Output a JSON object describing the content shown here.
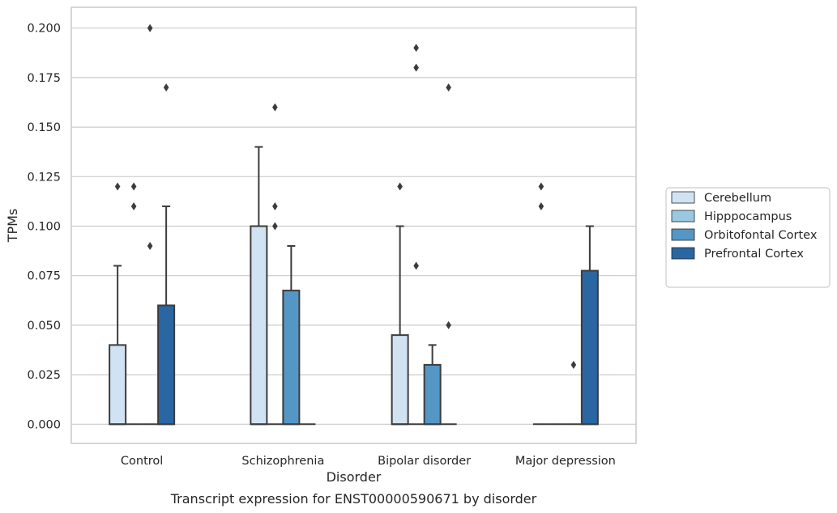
{
  "chart_data": {
    "type": "boxplot",
    "title": "Transcript expression for ENST00000590671 by disorder",
    "xlabel": "Disorder",
    "ylabel": "TPMs",
    "ylim": [
      -0.02,
      0.21
    ],
    "yticks": [
      0.0,
      0.025,
      0.05,
      0.075,
      0.1,
      0.125,
      0.15,
      0.175,
      0.2
    ],
    "ytick_labels": [
      "0.000",
      "0.025",
      "0.050",
      "0.075",
      "0.100",
      "0.125",
      "0.150",
      "0.175",
      "0.200"
    ],
    "grid": "horizontal",
    "legend_position": "right",
    "categories": [
      "Control",
      "Schizophrenia",
      "Bipolar disorder",
      "Major depression"
    ],
    "series": [
      {
        "name": "Cerebellum",
        "color": "#d1e2f2",
        "boxes": [
          {
            "min": 0.0,
            "q1": 0.0,
            "median": 0.0,
            "q3": 0.04,
            "max": 0.08,
            "outliers": [
              0.12
            ]
          },
          {
            "min": 0.0,
            "q1": 0.0,
            "median": 0.0,
            "q3": 0.1,
            "max": 0.14,
            "outliers": []
          },
          {
            "min": 0.0,
            "q1": 0.0,
            "median": 0.0,
            "q3": 0.045,
            "max": 0.1,
            "outliers": [
              0.12
            ]
          },
          {
            "min": 0.0,
            "q1": 0.0,
            "median": 0.0,
            "q3": 0.0,
            "max": 0.0,
            "outliers": [
              0.12,
              0.11
            ]
          }
        ]
      },
      {
        "name": "Hipppocampus",
        "color": "#9ac8e0",
        "boxes": [
          {
            "min": 0.0,
            "q1": 0.0,
            "median": 0.0,
            "q3": 0.0,
            "max": 0.0,
            "outliers": [
              0.12,
              0.11
            ]
          },
          {
            "min": 0.0,
            "q1": 0.0,
            "median": 0.0,
            "q3": 0.0,
            "max": 0.0,
            "outliers": [
              0.16,
              0.11,
              0.1
            ]
          },
          {
            "min": 0.0,
            "q1": 0.0,
            "median": 0.0,
            "q3": 0.0,
            "max": 0.0,
            "outliers": [
              0.19,
              0.18,
              0.08
            ]
          },
          {
            "min": 0.0,
            "q1": 0.0,
            "median": 0.0,
            "q3": 0.0,
            "max": 0.0,
            "outliers": []
          }
        ]
      },
      {
        "name": "Orbitofontal Cortex",
        "color": "#5496c4",
        "boxes": [
          {
            "min": 0.0,
            "q1": 0.0,
            "median": 0.0,
            "q3": 0.0,
            "max": 0.0,
            "outliers": [
              0.2,
              0.09
            ]
          },
          {
            "min": 0.0,
            "q1": 0.0,
            "median": 0.0,
            "q3": 0.0675,
            "max": 0.09,
            "outliers": []
          },
          {
            "min": 0.0,
            "q1": 0.0,
            "median": 0.0,
            "q3": 0.03,
            "max": 0.04,
            "outliers": []
          },
          {
            "min": 0.0,
            "q1": 0.0,
            "median": 0.0,
            "q3": 0.0,
            "max": 0.0,
            "outliers": [
              0.03
            ]
          }
        ]
      },
      {
        "name": "Prefrontal Cortex",
        "color": "#2a66a2",
        "boxes": [
          {
            "min": 0.0,
            "q1": 0.0,
            "median": 0.0,
            "q3": 0.06,
            "max": 0.11,
            "outliers": [
              0.17
            ]
          },
          {
            "min": 0.0,
            "q1": 0.0,
            "median": 0.0,
            "q3": 0.0,
            "max": 0.0,
            "outliers": []
          },
          {
            "min": 0.0,
            "q1": 0.0,
            "median": 0.0,
            "q3": 0.0,
            "max": 0.0,
            "outliers": [
              0.17,
              0.05
            ]
          },
          {
            "min": 0.0,
            "q1": 0.0,
            "median": 0.0,
            "q3": 0.0775,
            "max": 0.1,
            "outliers": []
          }
        ]
      }
    ]
  }
}
